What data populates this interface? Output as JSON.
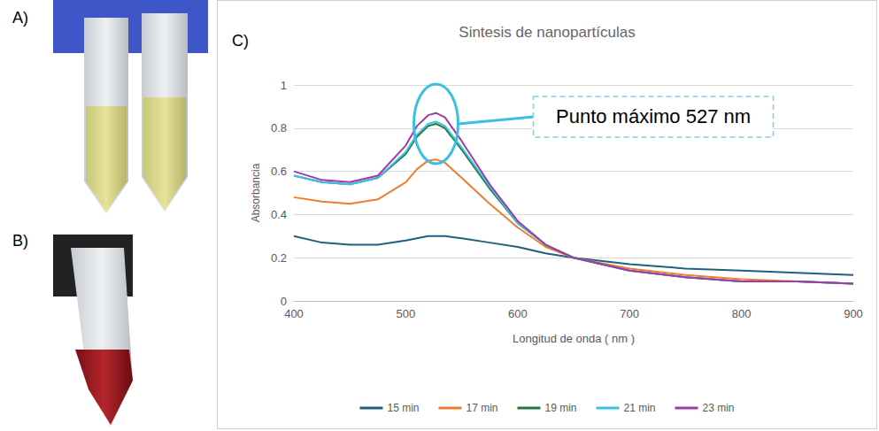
{
  "panel_labels": [
    "A)",
    "B)",
    "C)"
  ],
  "chart_data": {
    "type": "line",
    "title": "Sintesis de nanopartículas",
    "x_label": "Longitud de onda ( nm )",
    "y_label": "Absorbancia",
    "annotation": {
      "text": "Punto máximo 527 nm",
      "x": 527,
      "y": 0.82
    },
    "x": [
      400,
      425,
      450,
      475,
      500,
      510,
      520,
      527,
      535,
      550,
      575,
      600,
      625,
      650,
      700,
      750,
      800,
      850,
      900
    ],
    "series": [
      {
        "name": "15 min",
        "color": "#1f5f7f",
        "values": [
          0.3,
          0.27,
          0.26,
          0.26,
          0.28,
          0.29,
          0.3,
          0.3,
          0.3,
          0.29,
          0.27,
          0.25,
          0.22,
          0.2,
          0.17,
          0.15,
          0.14,
          0.13,
          0.12
        ]
      },
      {
        "name": "17 min",
        "color": "#ed7d31",
        "values": [
          0.48,
          0.46,
          0.45,
          0.47,
          0.55,
          0.61,
          0.65,
          0.655,
          0.64,
          0.57,
          0.45,
          0.34,
          0.25,
          0.2,
          0.15,
          0.12,
          0.1,
          0.09,
          0.08
        ]
      },
      {
        "name": "19 min",
        "color": "#1b7b3a",
        "values": [
          0.58,
          0.55,
          0.54,
          0.57,
          0.68,
          0.76,
          0.81,
          0.82,
          0.8,
          0.7,
          0.52,
          0.36,
          0.26,
          0.2,
          0.14,
          0.11,
          0.09,
          0.09,
          0.08
        ]
      },
      {
        "name": "21 min",
        "color": "#3cc0e6",
        "values": [
          0.58,
          0.55,
          0.54,
          0.57,
          0.69,
          0.77,
          0.82,
          0.83,
          0.81,
          0.71,
          0.53,
          0.36,
          0.26,
          0.2,
          0.14,
          0.11,
          0.09,
          0.09,
          0.08
        ]
      },
      {
        "name": "23 min",
        "color": "#a23aa6",
        "values": [
          0.6,
          0.56,
          0.55,
          0.58,
          0.72,
          0.81,
          0.86,
          0.87,
          0.85,
          0.74,
          0.54,
          0.37,
          0.26,
          0.2,
          0.14,
          0.11,
          0.09,
          0.09,
          0.08
        ]
      }
    ],
    "xlim": [
      400,
      900
    ],
    "xticks": [
      400,
      500,
      600,
      700,
      800,
      900
    ],
    "ylim": [
      0,
      1
    ],
    "yticks": [
      0,
      0.2,
      0.4,
      0.6,
      0.8,
      1
    ],
    "grid": true,
    "legend": "bottom"
  }
}
